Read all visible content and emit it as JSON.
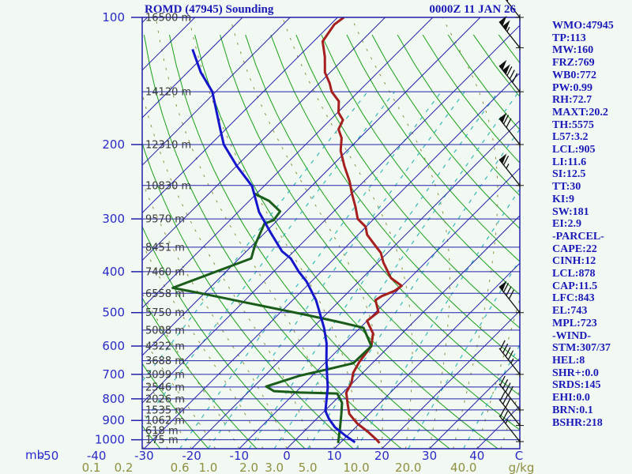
{
  "window": {
    "title": "ROMD (47945) Sounding",
    "datetime": "0000Z 11 JAN 26"
  },
  "colors": {
    "background": "#f2f9f2",
    "frame": "#2121aa",
    "isobar": "#2121aa",
    "isotherm": "#2121aa",
    "dry_adiabat": "#18a018",
    "moist_adiabat": "#8f8f40",
    "mixing_ratio": "#35b8b8",
    "temperature_trace": "#a51f1f",
    "dewpoint_trace": "#1a5c1a",
    "parcel_trace": "#1515cc",
    "pressure_text": "#2a2ac8",
    "height_text": "#3a3a3a",
    "temp_text": "#2a2ac8",
    "mixing_text": "#8f8f40",
    "wind_barb": "#111111"
  },
  "chart_data": {
    "type": "line",
    "title": "ROMD (47945) Sounding",
    "subtitle": "0000Z 11 JAN 26",
    "projection": "skew-t log-p",
    "y_axis": {
      "unit": "mb",
      "scale": "log-pressure",
      "range": [
        100,
        1050
      ],
      "tick_labels": [
        100,
        200,
        300,
        400,
        500,
        600,
        700,
        800,
        900,
        1000
      ],
      "isobars_mb": [
        100,
        150,
        200,
        250,
        300,
        350,
        400,
        450,
        500,
        550,
        600,
        650,
        700,
        750,
        800,
        850,
        900,
        950,
        1000
      ]
    },
    "x_axis": {
      "unit": "C",
      "skew_deg": 45,
      "tick_step_c": 10,
      "surface_tick_labels": [
        -50,
        -40,
        -30,
        -20,
        -10,
        0,
        10,
        20,
        30,
        40
      ],
      "isotherm_range_c": [
        -120,
        50
      ]
    },
    "mixing_ratio_axis": {
      "unit": "g/kg",
      "tick_labels": [
        "0.1",
        "0.2",
        "0.6",
        "1.0",
        "2.0",
        "3.0",
        "5.0",
        "10.0",
        "20.0",
        "40.0"
      ],
      "values": [
        0.1,
        0.2,
        0.6,
        1.0,
        2.0,
        3.0,
        5.0,
        10.0,
        20.0,
        40.0
      ]
    },
    "heights": [
      {
        "p": 100,
        "m": 16500
      },
      {
        "p": 150,
        "m": 14120
      },
      {
        "p": 200,
        "m": 12310
      },
      {
        "p": 250,
        "m": 10830
      },
      {
        "p": 300,
        "m": 9570
      },
      {
        "p": 350,
        "m": 8451
      },
      {
        "p": 400,
        "m": 7460
      },
      {
        "p": 450,
        "m": 6558
      },
      {
        "p": 500,
        "m": 5750
      },
      {
        "p": 550,
        "m": 5008
      },
      {
        "p": 600,
        "m": 4322
      },
      {
        "p": 650,
        "m": 3688
      },
      {
        "p": 700,
        "m": 3099
      },
      {
        "p": 750,
        "m": 2546
      },
      {
        "p": 800,
        "m": 2026
      },
      {
        "p": 850,
        "m": 1535
      },
      {
        "p": 900,
        "m": 1062
      },
      {
        "p": 950,
        "m": 618
      },
      {
        "p": 1000,
        "m": 175
      }
    ],
    "series": [
      {
        "name": "temperature",
        "color_key": "temperature_trace",
        "points": [
          [
            100,
            -78.7
          ],
          [
            104,
            -79.2
          ],
          [
            114,
            -78.1
          ],
          [
            124,
            -74.4
          ],
          [
            135,
            -71.1
          ],
          [
            143,
            -67.9
          ],
          [
            150,
            -65.6
          ],
          [
            158,
            -62.1
          ],
          [
            168,
            -59.8
          ],
          [
            175,
            -57.3
          ],
          [
            184,
            -56.3
          ],
          [
            193,
            -53.8
          ],
          [
            207,
            -51.3
          ],
          [
            225,
            -47.3
          ],
          [
            245,
            -42.9
          ],
          [
            261,
            -40.0
          ],
          [
            281,
            -36.4
          ],
          [
            300,
            -33.4
          ],
          [
            313,
            -30.1
          ],
          [
            327,
            -28.1
          ],
          [
            346,
            -24.3
          ],
          [
            361,
            -21.4
          ],
          [
            380,
            -18.9
          ],
          [
            397,
            -16.4
          ],
          [
            414,
            -14.0
          ],
          [
            432,
            -10.1
          ],
          [
            444,
            -10.5
          ],
          [
            457,
            -12.1
          ],
          [
            467,
            -12.6
          ],
          [
            498,
            -9.5
          ],
          [
            523,
            -10.0
          ],
          [
            560,
            -6.1
          ],
          [
            600,
            -3.8
          ],
          [
            654,
            -3.0
          ],
          [
            694,
            -2.0
          ],
          [
            734,
            -0.2
          ],
          [
            773,
            0.7
          ],
          [
            821,
            3.3
          ],
          [
            868,
            5.8
          ],
          [
            915,
            9.5
          ],
          [
            955,
            13.3
          ],
          [
            1001,
            17.1
          ],
          [
            1018,
            18.3
          ]
        ]
      },
      {
        "name": "dewpoint",
        "color_key": "dewpoint_trace",
        "points": [
          [
            261,
            -60.6
          ],
          [
            272,
            -55.8
          ],
          [
            288,
            -51.3
          ],
          [
            302,
            -50.8
          ],
          [
            308,
            -52.0
          ],
          [
            346,
            -49.5
          ],
          [
            372,
            -47.5
          ],
          [
            437,
            -57.8
          ],
          [
            453,
            -49.2
          ],
          [
            472,
            -40.0
          ],
          [
            505,
            -24.6
          ],
          [
            527,
            -15.4
          ],
          [
            543,
            -9.3
          ],
          [
            600,
            -3.8
          ],
          [
            659,
            -4.0
          ],
          [
            682,
            -8.3
          ],
          [
            705,
            -12.6
          ],
          [
            748,
            -17.4
          ],
          [
            767,
            -14.8
          ],
          [
            773,
            -9.0
          ],
          [
            777,
            -1.0
          ],
          [
            818,
            2.0
          ],
          [
            872,
            4.3
          ],
          [
            942,
            7.0
          ],
          [
            1018,
            9.6
          ]
        ]
      },
      {
        "name": "parcel",
        "color_key": "parcel_trace",
        "points": [
          [
            119,
            -103.8
          ],
          [
            135,
            -97.2
          ],
          [
            150,
            -90.7
          ],
          [
            185,
            -80.9
          ],
          [
            200,
            -77.2
          ],
          [
            225,
            -69.9
          ],
          [
            251,
            -62.5
          ],
          [
            289,
            -55.6
          ],
          [
            324,
            -48.7
          ],
          [
            358,
            -42.5
          ],
          [
            372,
            -39.2
          ],
          [
            400,
            -34.7
          ],
          [
            422,
            -31.0
          ],
          [
            467,
            -25.1
          ],
          [
            498,
            -21.9
          ],
          [
            543,
            -17.6
          ],
          [
            591,
            -13.8
          ],
          [
            646,
            -10.4
          ],
          [
            703,
            -7.0
          ],
          [
            751,
            -4.3
          ],
          [
            855,
            0.2
          ],
          [
            891,
            2.5
          ],
          [
            934,
            5.6
          ],
          [
            980,
            9.8
          ],
          [
            1014,
            13.0
          ]
        ]
      }
    ],
    "winds": {
      "storm_motion": "307/37",
      "barbs": [
        {
          "p": 100,
          "pennants": 2,
          "barbs": 1,
          "half": 0
        },
        {
          "p": 118,
          "pennants": 2,
          "barbs": 0,
          "half": 1
        },
        {
          "p": 150,
          "pennants": 2,
          "barbs": 3,
          "half": 0
        },
        {
          "p": 200,
          "pennants": 1,
          "barbs": 2,
          "half": 0
        },
        {
          "p": 250,
          "pennants": 1,
          "barbs": 1,
          "half": 1
        },
        {
          "p": 500,
          "pennants": 1,
          "barbs": 3,
          "half": 0
        },
        {
          "p": 700,
          "pennants": 0,
          "barbs": 4,
          "half": 1
        },
        {
          "p": 850,
          "pennants": 0,
          "barbs": 4,
          "half": 0
        },
        {
          "p": 925,
          "pennants": 0,
          "barbs": 3,
          "half": 0
        },
        {
          "p": 1010,
          "pennants": 0,
          "barbs": 2,
          "half": 1
        }
      ]
    },
    "axis_corner_labels": {
      "pressure_unit": "mb",
      "temp_unit": "C",
      "mixing_unit": "g/kg"
    }
  },
  "panel": {
    "lines": [
      "WMO:47945",
      "TP:113",
      "MW:160",
      "FRZ:769",
      "WB0:772",
      "PW:0.99",
      "RH:72.7",
      "MAXT:20.2",
      "TH:5575",
      "L57:3.2",
      "LCL:905",
      "LI:11.6",
      "SI:12.5",
      "TT:30",
      "KI:9",
      "SW:181",
      "EI:2.9",
      "-PARCEL-",
      "CAPE:22",
      "CINH:12",
      "LCL:878",
      "CAP:11.5",
      "LFC:843",
      "EL:743",
      "MPL:723",
      "-WIND-",
      "STM:307/37",
      "HEL:8",
      "SHR+:0.0",
      "SRDS:145",
      "EHI:0.0",
      "BRN:0.1",
      "BSHR:218"
    ]
  }
}
